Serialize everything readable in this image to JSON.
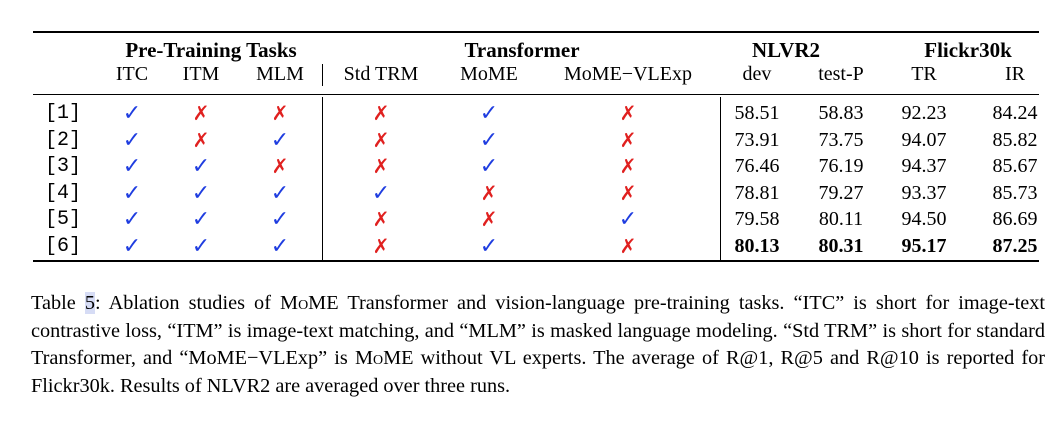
{
  "table": {
    "group_headers": [
      {
        "label": "Pre-Training Tasks"
      },
      {
        "label": "Transformer"
      },
      {
        "label": "NLVR2"
      },
      {
        "label": "Flickr30k"
      }
    ],
    "sub_headers": [
      "ITC",
      "ITM",
      "MLM",
      "Std TRM",
      "MoME",
      "MoME−VLExp",
      "dev",
      "test-P",
      "TR",
      "IR"
    ],
    "rows": [
      {
        "id": "[1]",
        "marks": [
          "check",
          "cross",
          "cross",
          "cross",
          "check",
          "cross"
        ],
        "values": [
          "58.51",
          "58.83",
          "92.23",
          "84.24"
        ],
        "bold": false
      },
      {
        "id": "[2]",
        "marks": [
          "check",
          "cross",
          "check",
          "cross",
          "check",
          "cross"
        ],
        "values": [
          "73.91",
          "73.75",
          "94.07",
          "85.82"
        ],
        "bold": false
      },
      {
        "id": "[3]",
        "marks": [
          "check",
          "check",
          "cross",
          "cross",
          "check",
          "cross"
        ],
        "values": [
          "76.46",
          "76.19",
          "94.37",
          "85.67"
        ],
        "bold": false
      },
      {
        "id": "[4]",
        "marks": [
          "check",
          "check",
          "check",
          "check",
          "cross",
          "cross"
        ],
        "values": [
          "78.81",
          "79.27",
          "93.37",
          "85.73"
        ],
        "bold": false
      },
      {
        "id": "[5]",
        "marks": [
          "check",
          "check",
          "check",
          "cross",
          "cross",
          "check"
        ],
        "values": [
          "79.58",
          "80.11",
          "94.50",
          "86.69"
        ],
        "bold": false
      },
      {
        "id": "[6]",
        "marks": [
          "check",
          "check",
          "check",
          "cross",
          "check",
          "cross"
        ],
        "values": [
          "80.13",
          "80.31",
          "95.17",
          "87.25"
        ],
        "bold": true
      }
    ],
    "symbols": {
      "check": "✓",
      "cross": "✗"
    },
    "colors": {
      "check": "#1f3de0",
      "cross": "#e0201f"
    }
  },
  "caption": {
    "label": "Table ",
    "ref": "5",
    "colon": ":",
    "text_1": "  Ablation studies of ",
    "mome_a": "MoME",
    "text_2": " Transformer and vision-language pre-training tasks. “ITC” is short for image-text contrastive loss, “ITM” is image-text matching, and “MLM” is masked language modeling. “Std TRM” is short for standard Transformer, and “MoME−VLExp” is ",
    "mome_b": "MoME",
    "text_3": " without VL experts. The average of R@1, R@5 and R@10 is reported for Flickr30k. Results of NLVR2 are averaged over three runs."
  }
}
